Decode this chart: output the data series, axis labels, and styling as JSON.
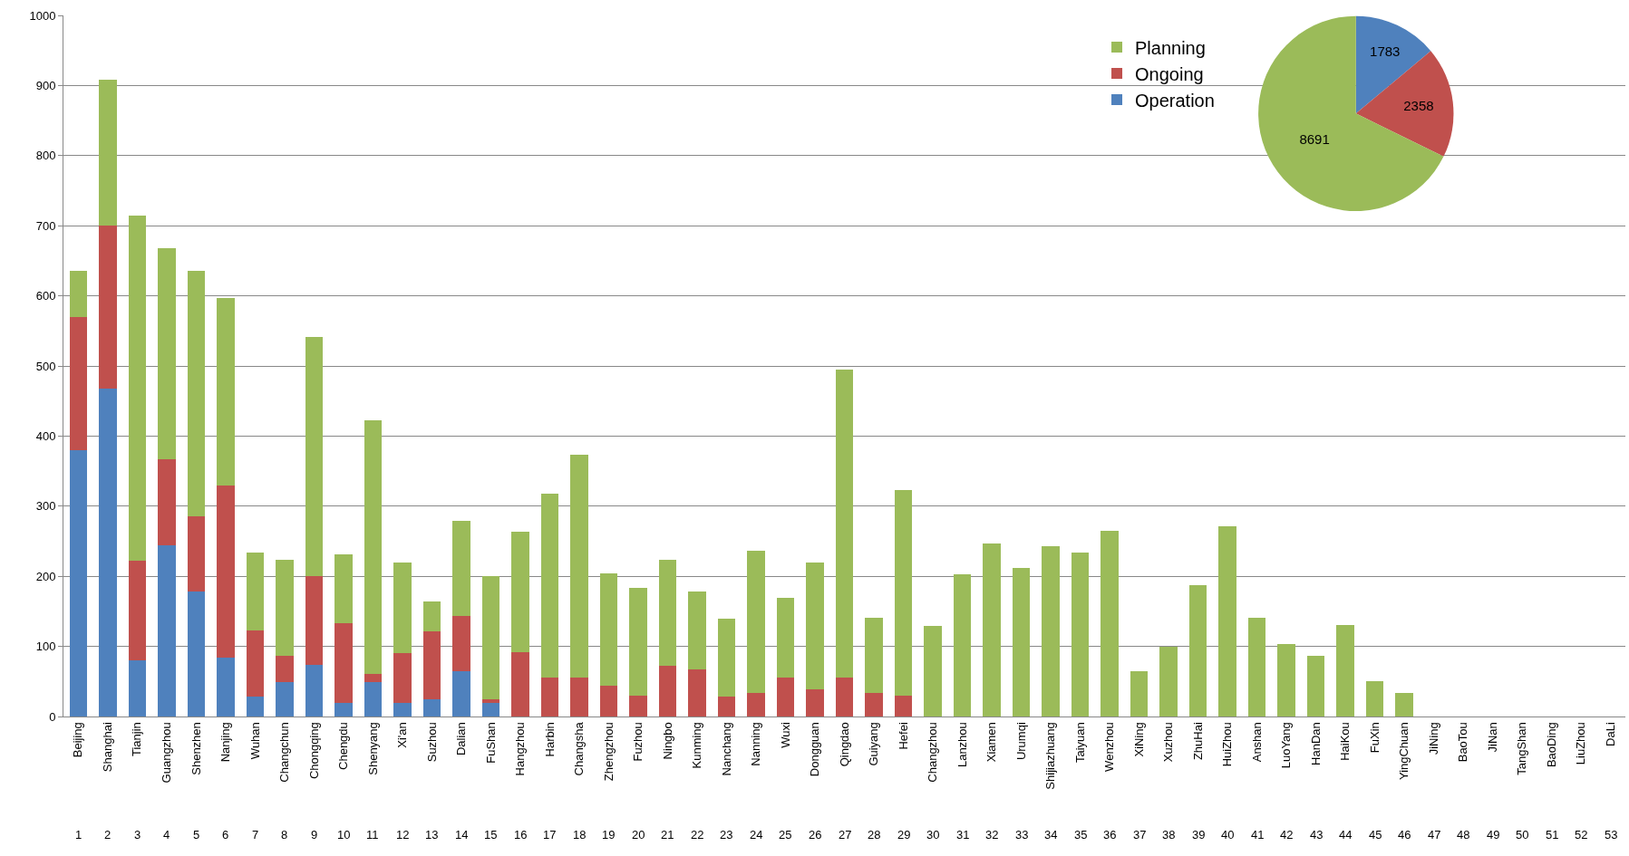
{
  "chart_data": [
    {
      "type": "bar",
      "stacked": true,
      "categories": [
        "Beijing\n1",
        "Shanghai\n2",
        "Tianjin\n3",
        "Guangzhou\n4",
        "Shenzhen\n5",
        "Nanjing\n6",
        "Wuhan\n7",
        "Changchun\n8",
        "Chongqing\n9",
        "Chengdu\n10",
        "Shenyang\n11",
        "Xi'an\n12",
        "Suzhou\n13",
        "Dalian\n14",
        "FuShan\n15",
        "Hangzhou\n16",
        "Harbin\n17",
        "Changsha\n18",
        "Zhengzhou\n19",
        "Fuzhou\n20",
        "Ningbo\n21",
        "Kunming\n22",
        "Nanchang\n23",
        "Nanning\n24",
        "Wuxi\n25",
        "Dongguan\n26",
        "Qingdao\n27",
        "Guiyang\n28",
        "Hefei\n29",
        "Changzhou\n30",
        "Lanzhou\n31",
        "Xiamen\n32",
        "Urumqi\n33",
        "Shijiazhuang\n34",
        "Taiyuan\n35",
        "Wenzhou\n36",
        "XiNing\n37",
        "Xuzhou\n38",
        "ZhuHai\n39",
        "HuiZhou\n40",
        "Anshan\n41",
        "LuoYang\n42",
        "HanDan\n43",
        "HaiKou\n44",
        "FuXin\n45",
        "YingChuan\n46",
        "JiNing\n47",
        "BaoTou\n48",
        "JiNan\n49",
        "TangShan\n50",
        "BaoDing\n51",
        "LiuZhou\n52",
        "DaLi\n53"
      ],
      "series": [
        {
          "name": "Operation",
          "color": "#4f81bd",
          "values": [
            380,
            468,
            80,
            244,
            178,
            84,
            28,
            49,
            74,
            19,
            49,
            19,
            25,
            64,
            19,
            0,
            0,
            0,
            0,
            0,
            0,
            0,
            0,
            0,
            0,
            0,
            0,
            0,
            0,
            0,
            0,
            0,
            0,
            0,
            0,
            0,
            0,
            0,
            0,
            0,
            0,
            0,
            0,
            0,
            0,
            0,
            0,
            0,
            0,
            0,
            0,
            0,
            0
          ]
        },
        {
          "name": "Ongoing",
          "color": "#c0504d",
          "values": [
            190,
            232,
            142,
            123,
            108,
            246,
            95,
            37,
            126,
            114,
            12,
            71,
            96,
            80,
            6,
            92,
            55,
            56,
            44,
            30,
            73,
            67,
            28,
            33,
            55,
            39,
            55,
            33,
            30,
            0,
            0,
            0,
            0,
            0,
            0,
            0,
            0,
            0,
            0,
            0,
            0,
            0,
            0,
            0,
            0,
            0,
            0,
            0,
            0,
            0,
            0,
            0,
            0
          ]
        },
        {
          "name": "Planning",
          "color": "#9bbb59",
          "values": [
            66,
            208,
            492,
            301,
            350,
            267,
            111,
            138,
            341,
            98,
            361,
            129,
            43,
            135,
            175,
            172,
            263,
            317,
            160,
            154,
            151,
            111,
            111,
            204,
            114,
            180,
            440,
            108,
            293,
            129,
            203,
            247,
            212,
            243,
            234,
            265,
            65,
            100,
            187,
            271,
            141,
            104,
            87,
            130,
            50,
            34,
            0,
            0,
            0,
            0,
            0,
            0,
            0
          ]
        }
      ],
      "ylim": [
        0,
        1000
      ],
      "yticks": [
        0,
        100,
        200,
        300,
        400,
        500,
        600,
        700,
        800,
        900,
        1000
      ],
      "grid": "y",
      "legend": "top right"
    },
    {
      "type": "pie",
      "categories": [
        null,
        null,
        null
      ],
      "values": [
        1783,
        2358,
        8691
      ],
      "colors": [
        "#4f81bd",
        "#c0504d",
        "#9bbb59"
      ],
      "data_labels": true
    }
  ]
}
